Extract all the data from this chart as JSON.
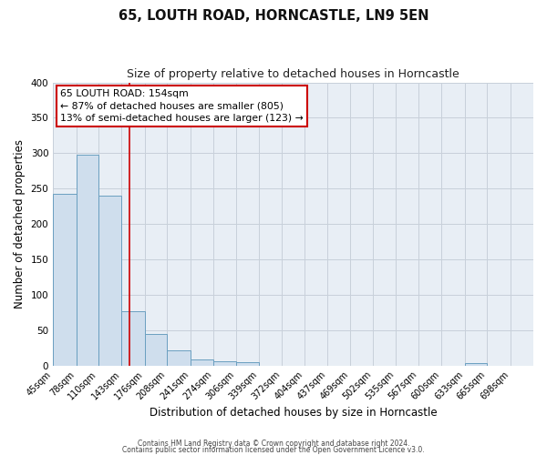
{
  "title": "65, LOUTH ROAD, HORNCASTLE, LN9 5EN",
  "subtitle": "Size of property relative to detached houses in Horncastle",
  "xlabel": "Distribution of detached houses by size in Horncastle",
  "ylabel": "Number of detached properties",
  "bin_edges": [
    45,
    78,
    110,
    143,
    176,
    208,
    241,
    274,
    306,
    339,
    372,
    404,
    437,
    469,
    502,
    535,
    567,
    600,
    633,
    665,
    698,
    731
  ],
  "bar_heights": [
    242,
    298,
    240,
    77,
    44,
    21,
    9,
    6,
    5,
    0,
    0,
    0,
    0,
    0,
    0,
    0,
    0,
    0,
    3,
    0,
    0
  ],
  "bar_color": "#cfdeed",
  "bar_edge_color": "#6a9fc0",
  "vline_x": 154,
  "vline_color": "#cc0000",
  "ylim": [
    0,
    400
  ],
  "yticks": [
    0,
    50,
    100,
    150,
    200,
    250,
    300,
    350,
    400
  ],
  "xlim_left": 45,
  "xlim_right": 731,
  "annotation_title": "65 LOUTH ROAD: 154sqm",
  "annotation_line1": "← 87% of detached houses are smaller (805)",
  "annotation_line2": "13% of semi-detached houses are larger (123) →",
  "annotation_box_facecolor": "#ffffff",
  "annotation_box_edgecolor": "#cc0000",
  "footer_line1": "Contains HM Land Registry data © Crown copyright and database right 2024.",
  "footer_line2": "Contains public sector information licensed under the Open Government Licence v3.0.",
  "fig_facecolor": "#ffffff",
  "plot_facecolor": "#e8eef5",
  "grid_color": "#c8d0da",
  "title_fontsize": 10.5,
  "subtitle_fontsize": 9,
  "axis_label_fontsize": 8.5,
  "tick_label_fontsize": 7,
  "annotation_fontsize": 7.8,
  "footer_fontsize": 5.5
}
